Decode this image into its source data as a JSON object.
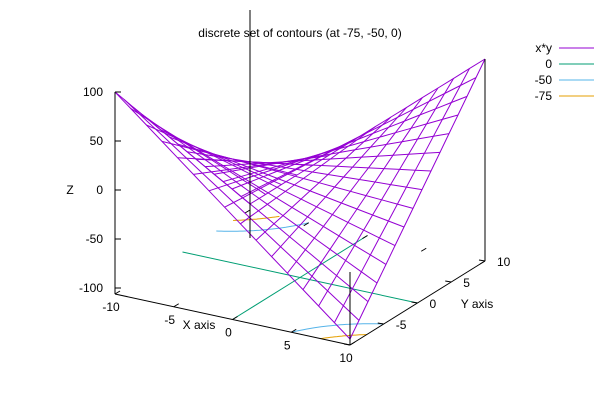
{
  "chart_data": {
    "type": "surface3d",
    "title": "discrete set of contours (at -75, -50, 0)",
    "function": "x*y",
    "xlabel": "X axis",
    "ylabel": "Y axis",
    "zlabel": "Z",
    "xrange": [
      -10,
      10
    ],
    "yrange": [
      -10,
      10
    ],
    "zrange": [
      -100,
      100
    ],
    "x_ticks": [
      "-10",
      "-5",
      "0",
      "5",
      "10"
    ],
    "y_ticks": [
      "-5",
      "0",
      "5",
      "10"
    ],
    "z_ticks": [
      "100",
      "50",
      "0",
      "-50",
      "-100"
    ],
    "grid_samples": [
      -10,
      -8.67,
      -7.33,
      -6,
      -4.67,
      -3.33,
      -2,
      -0.67,
      0.67,
      2,
      3.33,
      4.67,
      6,
      7.33,
      8.67,
      10
    ],
    "contour_levels": [
      0,
      -50,
      -75
    ],
    "legend_placement": "top-right",
    "legend": [
      {
        "label": "x*y",
        "color": "#9400d3"
      },
      {
        "label": "0",
        "color": "#009e73"
      },
      {
        "label": "-50",
        "color": "#56b4e9"
      },
      {
        "label": "-75",
        "color": "#e69f00"
      }
    ]
  }
}
